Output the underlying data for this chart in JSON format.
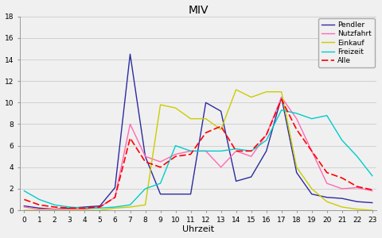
{
  "title": "MIV",
  "xlabel": "Uhrzeit",
  "x": [
    0,
    1,
    2,
    3,
    4,
    5,
    6,
    7,
    8,
    9,
    10,
    11,
    12,
    13,
    14,
    15,
    16,
    17,
    18,
    19,
    20,
    21,
    22,
    23
  ],
  "Pendler": [
    0.4,
    0.2,
    0.1,
    0.2,
    0.3,
    0.4,
    2.1,
    14.5,
    5.0,
    1.5,
    1.5,
    1.5,
    10.0,
    9.2,
    2.7,
    3.1,
    5.5,
    10.5,
    3.5,
    1.5,
    1.2,
    1.1,
    0.8,
    0.7
  ],
  "Nutzfahrt": [
    0.3,
    0.1,
    0.1,
    0.1,
    0.1,
    0.3,
    1.2,
    8.0,
    5.0,
    4.5,
    5.2,
    5.5,
    5.5,
    4.0,
    5.5,
    5.0,
    7.0,
    10.5,
    8.5,
    5.5,
    2.5,
    2.0,
    2.1,
    1.8
  ],
  "Einkauf": [
    0.0,
    0.0,
    0.0,
    0.0,
    0.0,
    0.0,
    0.2,
    0.3,
    0.5,
    9.8,
    9.5,
    8.5,
    8.5,
    7.5,
    11.2,
    10.5,
    11.0,
    11.0,
    4.0,
    2.0,
    0.8,
    0.3,
    0.1,
    0.0
  ],
  "Freizeit": [
    1.8,
    1.0,
    0.5,
    0.3,
    0.2,
    0.2,
    0.3,
    0.5,
    2.0,
    2.5,
    6.0,
    5.5,
    5.5,
    5.5,
    5.7,
    5.5,
    6.5,
    9.3,
    9.0,
    8.5,
    8.8,
    6.5,
    5.0,
    3.2
  ],
  "Alle": [
    1.0,
    0.5,
    0.3,
    0.2,
    0.2,
    0.3,
    1.2,
    6.7,
    4.5,
    4.0,
    5.0,
    5.2,
    7.2,
    7.8,
    5.5,
    5.5,
    7.0,
    10.3,
    7.5,
    5.5,
    3.5,
    3.0,
    2.2,
    1.9
  ],
  "colors": {
    "Pendler": "#2B2BA0",
    "Nutzfahrt": "#FF69B4",
    "Einkauf": "#CCCC00",
    "Freizeit": "#00CCCC",
    "Alle": "#FF0000"
  },
  "ylim": [
    0,
    18
  ],
  "yticks": [
    0,
    2,
    4,
    6,
    8,
    10,
    12,
    14,
    16,
    18
  ],
  "xticks": [
    0,
    1,
    2,
    3,
    4,
    5,
    6,
    7,
    8,
    9,
    10,
    11,
    12,
    13,
    14,
    15,
    16,
    17,
    18,
    19,
    20,
    21,
    22,
    23
  ],
  "fig_width": 4.8,
  "fig_height": 3.0,
  "dpi": 100
}
